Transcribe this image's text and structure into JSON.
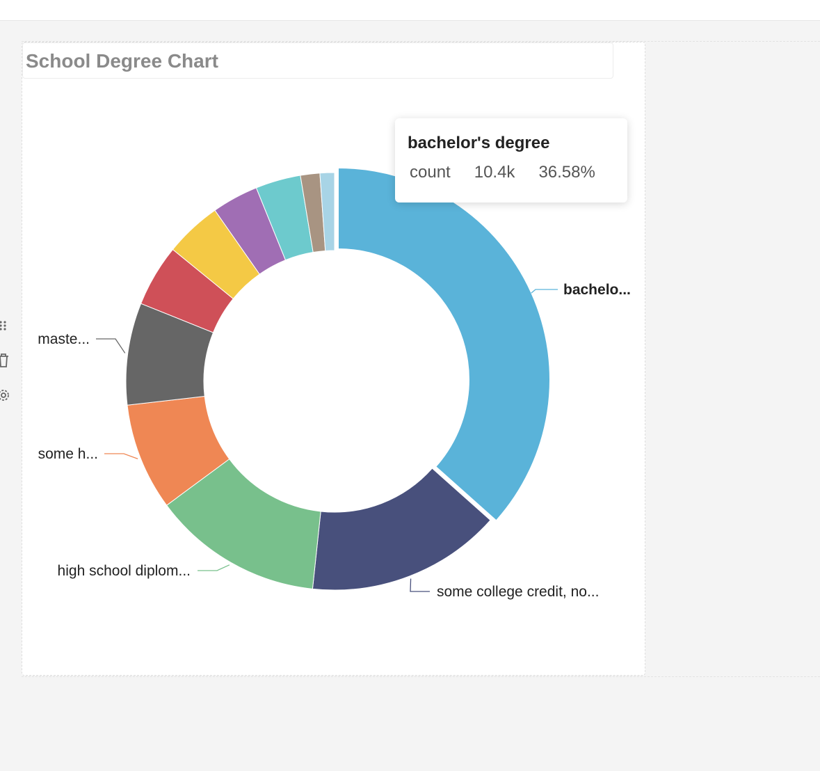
{
  "chart_title": "School Degree Chart",
  "tooltip": {
    "title": "bachelor's degree",
    "measure": "count",
    "value": "10.4k",
    "percent": "36.58%"
  },
  "colors": {
    "accent": "#5ab3d9"
  },
  "side_tools": [
    "drag-handle-icon",
    "trash-icon",
    "gear-icon"
  ],
  "chart_data": {
    "type": "pie",
    "variant": "donut",
    "title": "School Degree Chart",
    "measure": "count",
    "highlighted": "bachelor's degree",
    "slices": [
      {
        "label": "bachelo...",
        "full_label": "bachelor's degree",
        "percent": 36.58,
        "value": 10400,
        "color": "#5ab3d9"
      },
      {
        "label": "some college credit, no...",
        "percent": 15.1,
        "color": "#48507c"
      },
      {
        "label": "high school diplom...",
        "percent": 13.2,
        "color": "#78c08c"
      },
      {
        "label": "some h...",
        "percent": 8.3,
        "color": "#ef8754"
      },
      {
        "label": "maste...",
        "percent": 7.9,
        "color": "#666666"
      },
      {
        "label": "",
        "percent": 4.8,
        "color": "#cf5058"
      },
      {
        "label": "",
        "percent": 4.4,
        "color": "#f4c945"
      },
      {
        "label": "",
        "percent": 3.6,
        "color": "#a06eb4"
      },
      {
        "label": "",
        "percent": 3.5,
        "color": "#6dcacd"
      },
      {
        "label": "",
        "percent": 1.5,
        "color": "#a89482"
      },
      {
        "label": "",
        "percent": 1.12,
        "color": "#a8d4e6"
      }
    ]
  }
}
